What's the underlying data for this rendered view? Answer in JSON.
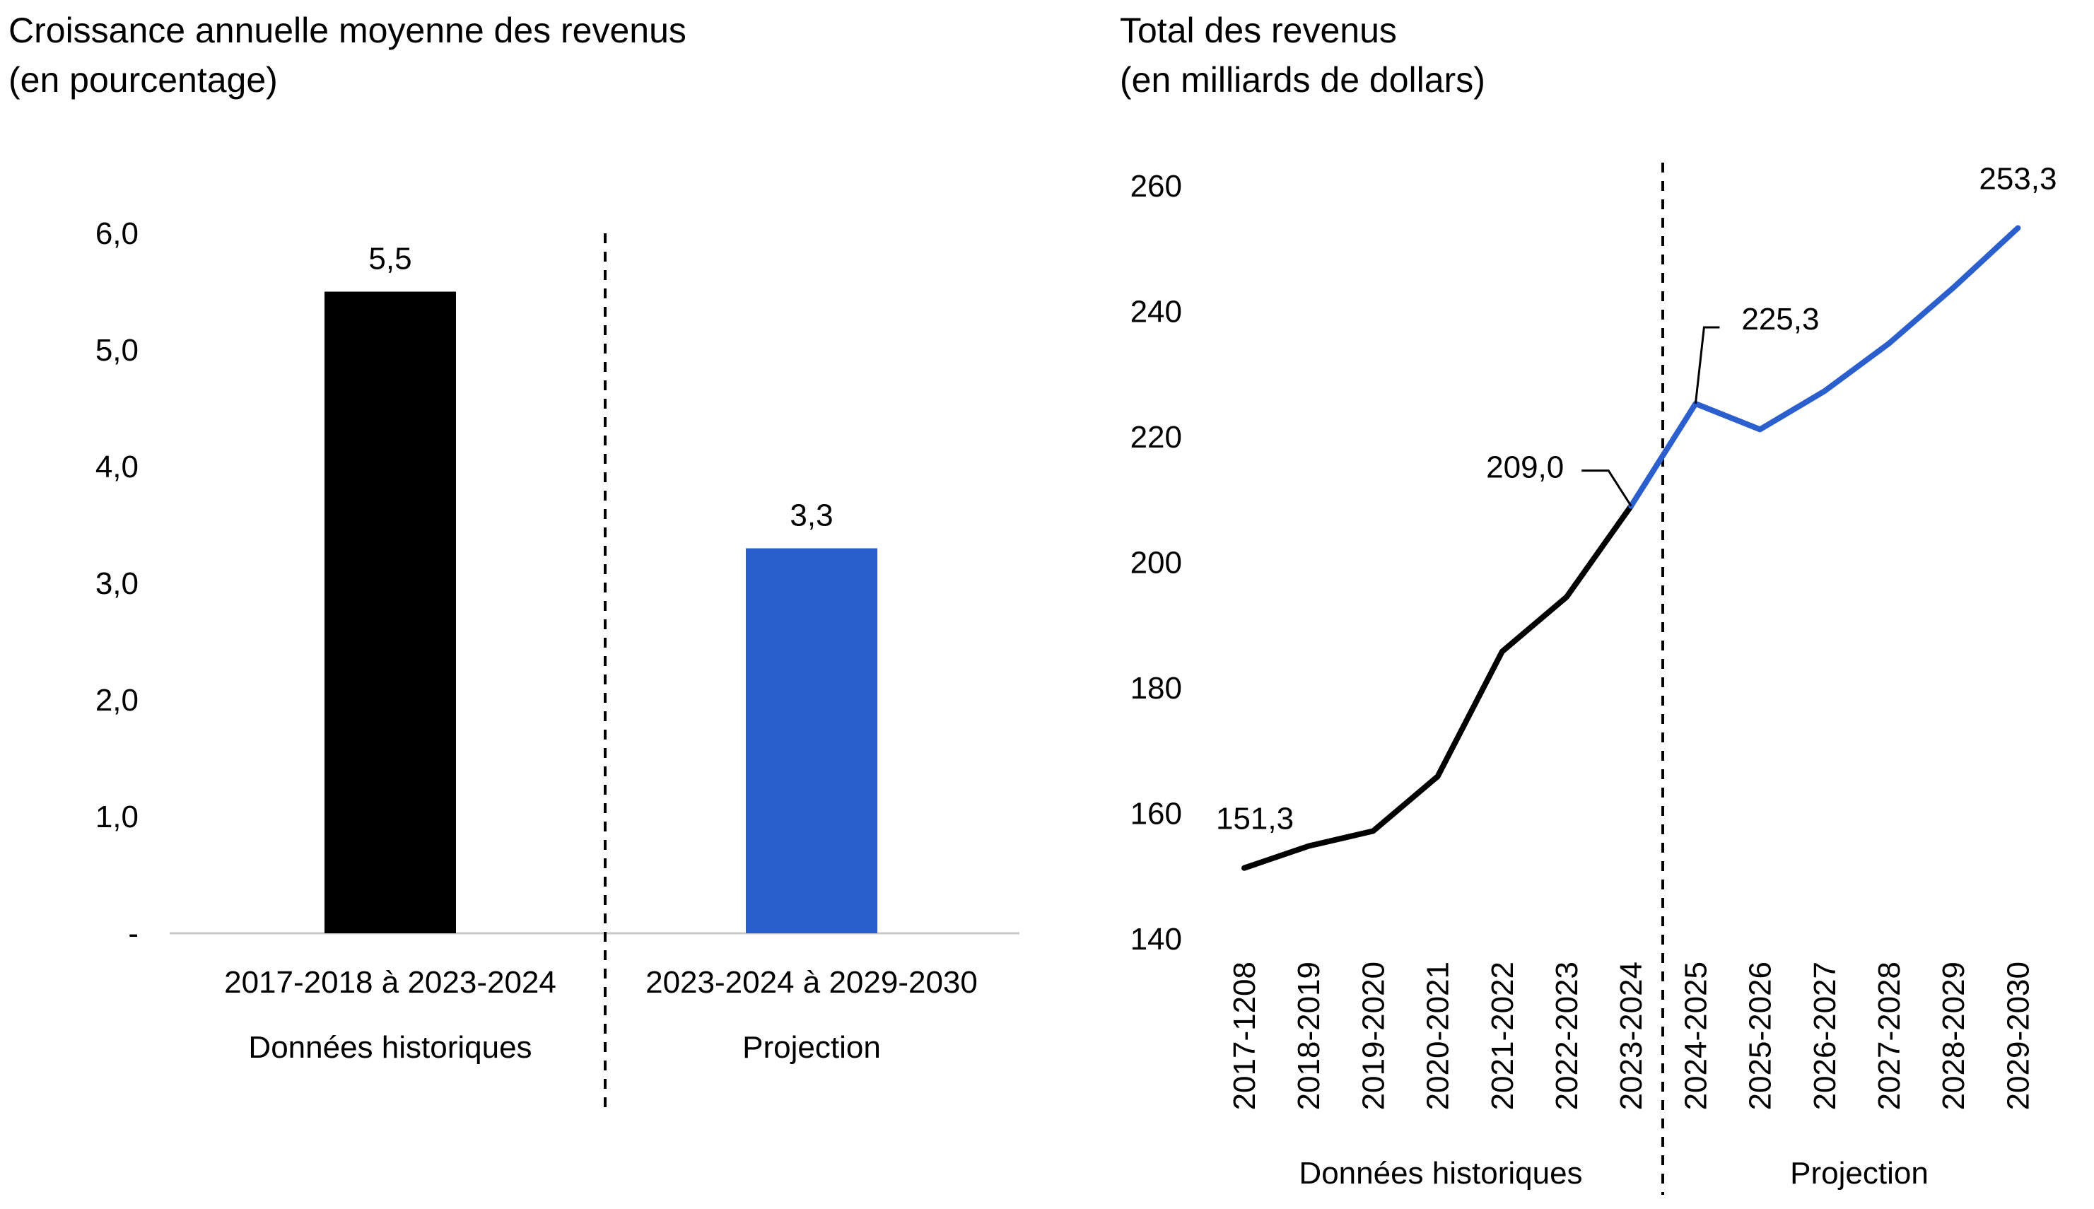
{
  "chart_data": [
    {
      "type": "bar",
      "title": "Croissance annuelle moyenne des revenus",
      "subtitle": "(en pourcentage)",
      "categories": [
        "2017-2018 à 2023-2024",
        "2023-2024 à 2029-2030"
      ],
      "groups": [
        "Données historiques",
        "Projection"
      ],
      "values": [
        5.5,
        3.3
      ],
      "value_labels": [
        "5,5",
        "3,3"
      ],
      "colors": [
        "#000000",
        "#2b5fce"
      ],
      "ylim": [
        0,
        6
      ],
      "yticks": [
        0,
        1,
        2,
        3,
        4,
        5,
        6
      ],
      "ytick_labels": [
        "-",
        "1,0",
        "2,0",
        "3,0",
        "4,0",
        "5,0",
        "6,0"
      ],
      "grid": false,
      "divider": "dashed line between historical and projection"
    },
    {
      "type": "line",
      "title": "Total des revenus",
      "subtitle": "(en milliards de dollars)",
      "x": [
        "2017-1208",
        "2018-2019",
        "2019-2020",
        "2020-2021",
        "2021-2022",
        "2022-2023",
        "2023-2024",
        "2024-2025",
        "2025-2026",
        "2026-2027",
        "2027-2028",
        "2028-2029",
        "2029-2030"
      ],
      "values": [
        151.3,
        154.8,
        157.2,
        165.9,
        185.8,
        194.5,
        209.0,
        225.3,
        221.2,
        227.3,
        234.9,
        243.8,
        253.3
      ],
      "historical_count": 7,
      "historical_color": "#000000",
      "projection_color": "#2b5fce",
      "ylim": [
        140,
        260
      ],
      "yticks": [
        140,
        160,
        180,
        200,
        220,
        240,
        260
      ],
      "ytick_labels": [
        "140",
        "160",
        "180",
        "200",
        "220",
        "240",
        "260"
      ],
      "annotations": [
        {
          "index": 0,
          "label": "151,3"
        },
        {
          "index": 6,
          "label": "209,0"
        },
        {
          "index": 7,
          "label": "225,3"
        },
        {
          "index": 12,
          "label": "253,3"
        }
      ],
      "groups": [
        "Données historiques",
        "Projection"
      ],
      "grid": false
    }
  ]
}
